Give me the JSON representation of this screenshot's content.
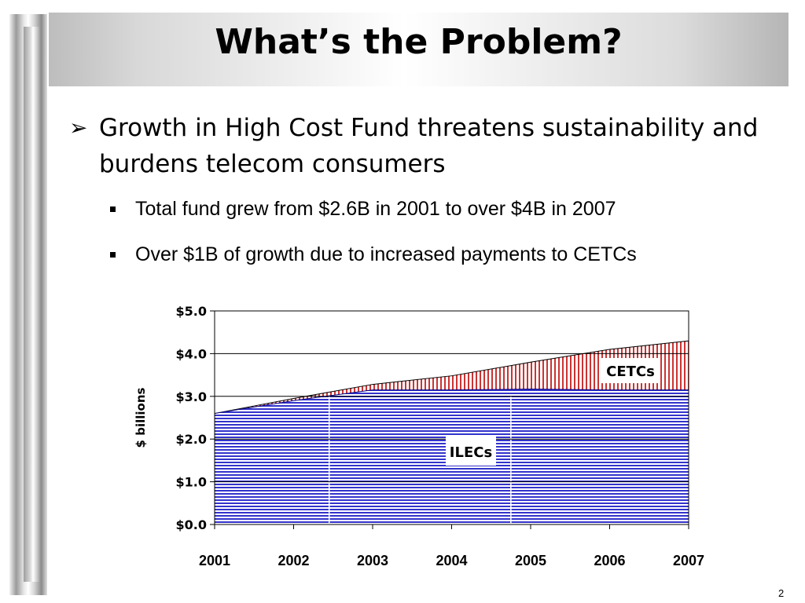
{
  "slide": {
    "title": "What’s the Problem?",
    "bullet": "Growth in High Cost Fund threatens sustainability and burdens telecom consumers",
    "sub_bullets": [
      "Total fund grew from $2.6B in 2001 to over $4B in 2007",
      "Over $1B of growth due to increased payments to CETCs"
    ],
    "page_number": "2"
  },
  "chart_data": {
    "type": "area",
    "stacked": true,
    "x": [
      2001,
      2002,
      2003,
      2004,
      2005,
      2006,
      2007
    ],
    "x_tick_labels": [
      "2001",
      "2002",
      "2003",
      "2004",
      "2005",
      "2006",
      "2007"
    ],
    "ylabel": "$ billions",
    "ylim": [
      0,
      5
    ],
    "y_ticks": [
      0,
      1,
      2,
      3,
      4,
      5
    ],
    "y_tick_labels": [
      "$0.0",
      "$1.0",
      "$2.0",
      "$3.0",
      "$4.0",
      "$5.0"
    ],
    "grid": true,
    "series": [
      {
        "name": "ILECs",
        "values": [
          2.6,
          2.9,
          3.15,
          3.15,
          3.17,
          3.15,
          3.15
        ],
        "color": "#3333cc",
        "pattern": "horizontal-lines"
      },
      {
        "name": "CETCs",
        "values": [
          0.0,
          0.05,
          0.13,
          0.33,
          0.63,
          0.95,
          1.15
        ],
        "color": "#cc3333",
        "pattern": "vertical-lines"
      }
    ]
  }
}
